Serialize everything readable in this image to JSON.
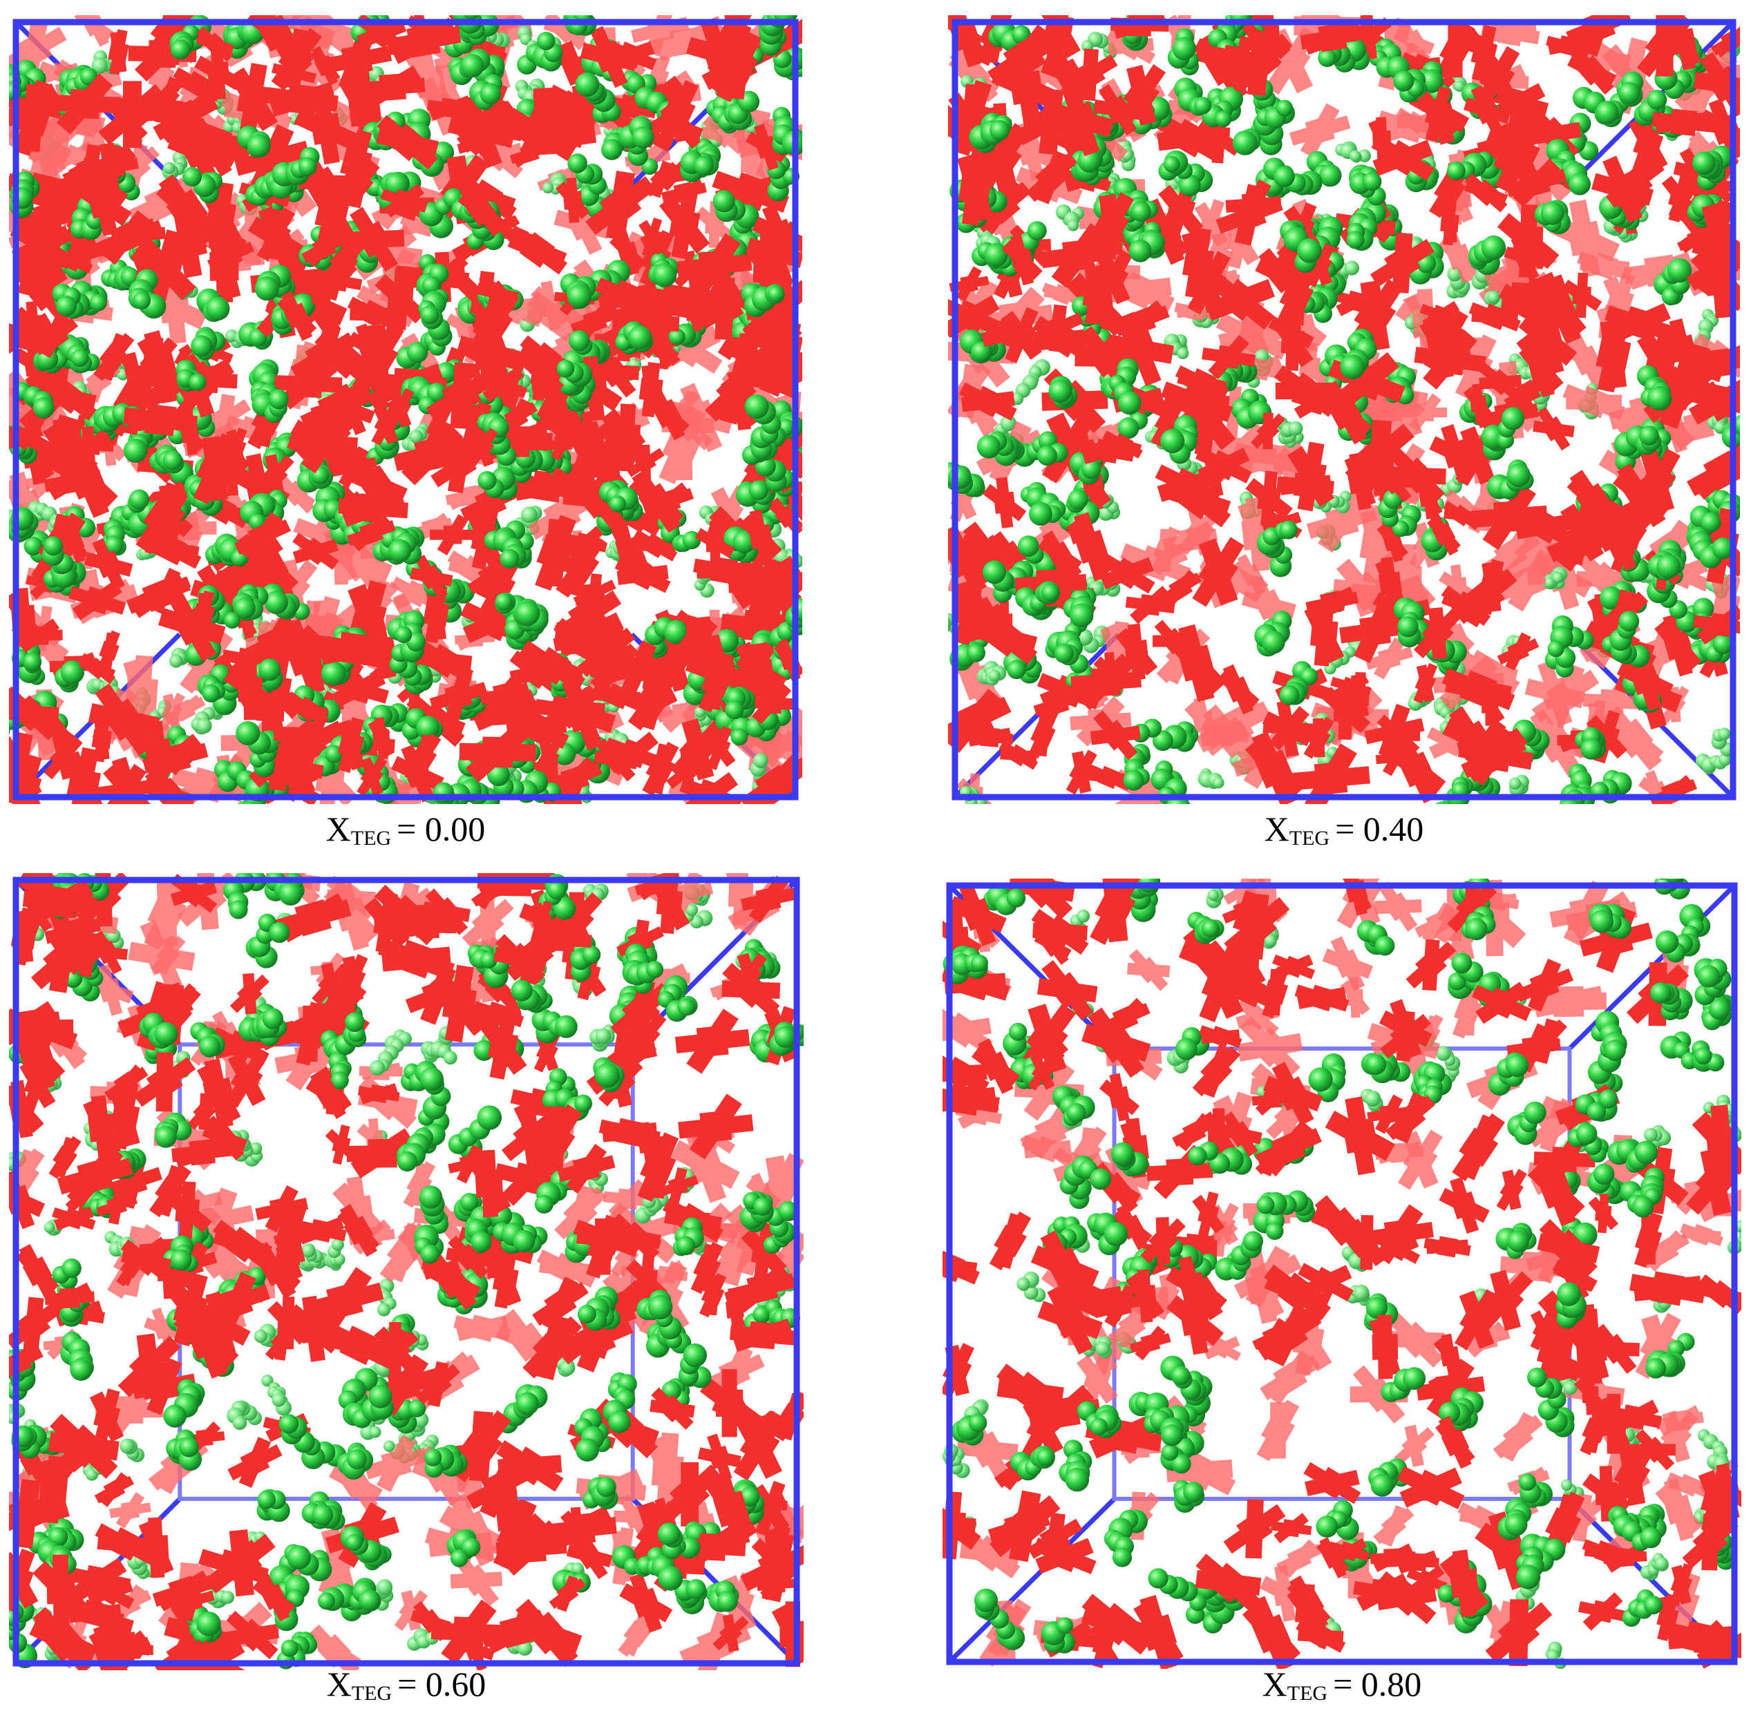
{
  "panels": [
    {
      "caption": {
        "symbol": "X",
        "subscript": "TEG",
        "relation": "= 0.00"
      }
    },
    {
      "caption": {
        "symbol": "X",
        "subscript": "TEG",
        "relation": "= 0.40"
      }
    },
    {
      "caption": {
        "symbol": "X",
        "subscript": "TEG",
        "relation": "= 0.60"
      }
    },
    {
      "caption": {
        "symbol": "X",
        "subscript": "TEG",
        "relation": "= 0.80"
      }
    }
  ]
}
